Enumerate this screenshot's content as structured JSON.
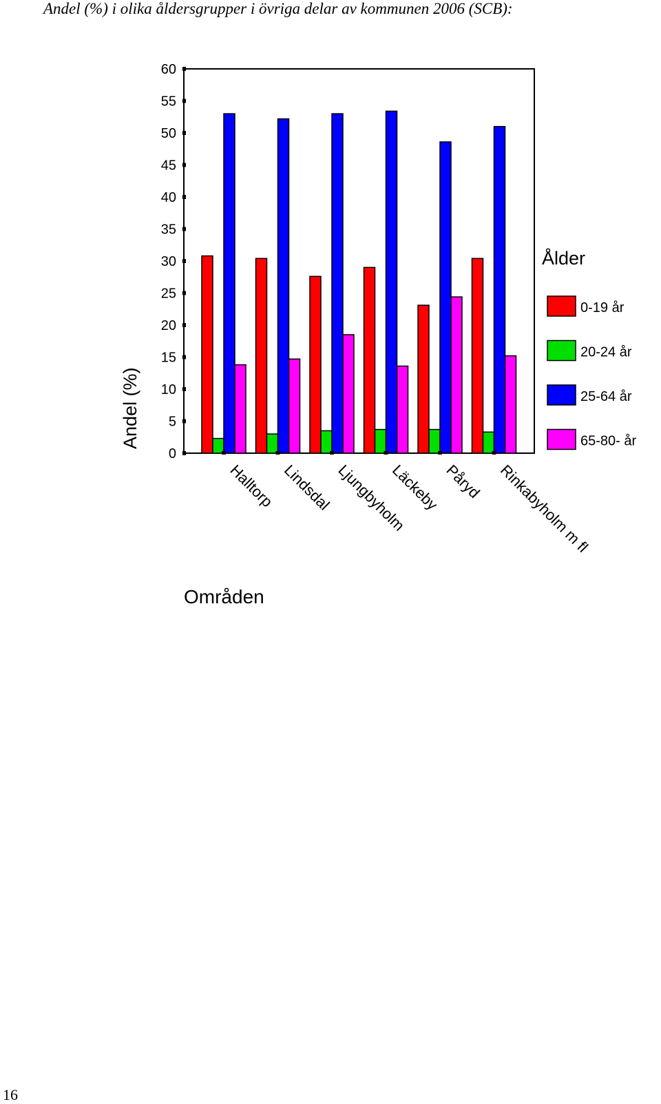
{
  "page": {
    "title": "Andel (%) i olika åldersgrupper i övriga delar av kommunen 2006 (SCB):",
    "page_number": "16"
  },
  "chart_data": {
    "type": "bar",
    "title": "",
    "xlabel": "Områden",
    "ylabel": "Andel (%)",
    "ylim": [
      0,
      60
    ],
    "yticks": [
      0,
      5,
      10,
      15,
      20,
      25,
      30,
      35,
      40,
      45,
      50,
      55,
      60
    ],
    "grid": false,
    "legend_title": "Ålder",
    "legend_position": "right",
    "categories": [
      "Halltorp",
      "Lindsdal",
      "Ljungbyholm",
      "Läckeby",
      "Påryd",
      "Rinkabyholm m fl"
    ],
    "series": [
      {
        "name": "0-19 år",
        "color": "#ff0000",
        "values": [
          30.8,
          30.4,
          27.6,
          29.0,
          23.1,
          30.4
        ]
      },
      {
        "name": "20-24 år",
        "color": "#00e000",
        "values": [
          2.3,
          3.0,
          3.5,
          3.7,
          3.7,
          3.3
        ]
      },
      {
        "name": "25-64 år",
        "color": "#0000ff",
        "values": [
          53.0,
          52.2,
          53.0,
          53.4,
          48.6,
          51.0
        ]
      },
      {
        "name": "65-80- år",
        "color": "#ff00ff",
        "values": [
          13.8,
          14.7,
          18.5,
          13.6,
          24.4,
          15.2
        ]
      }
    ]
  }
}
